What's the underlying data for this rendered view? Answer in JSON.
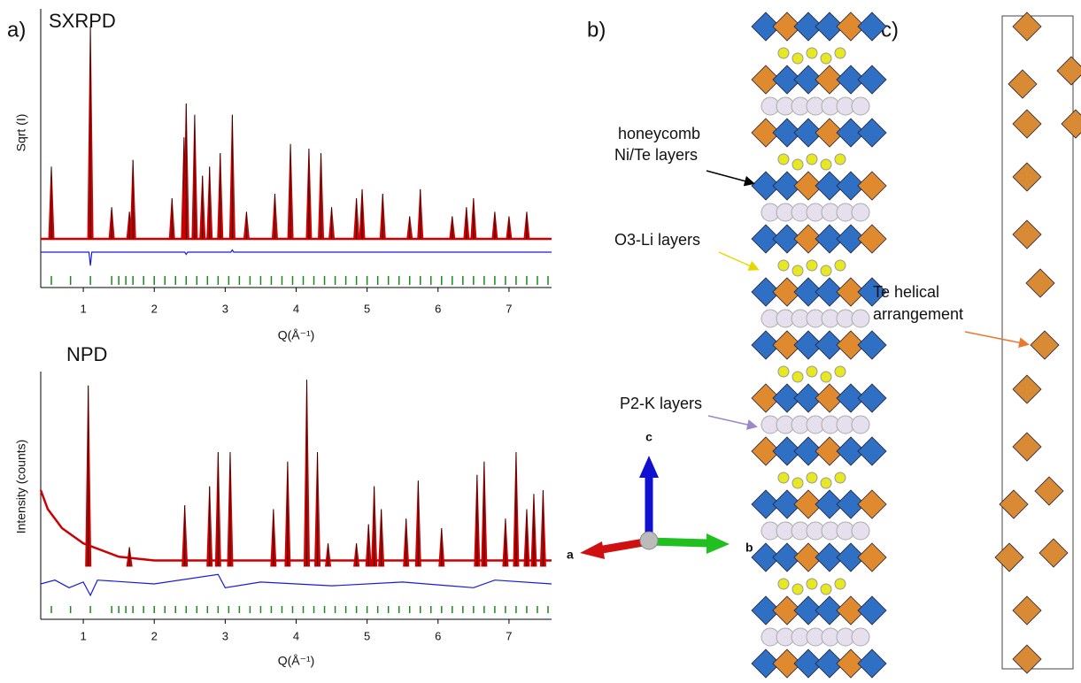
{
  "panel_labels": [
    "a)",
    "b)",
    "c)"
  ],
  "chart_data": [
    {
      "type": "line",
      "title": "SXRPD",
      "y_label": "Sqrt (I)",
      "x_label": "Q(Å⁻¹)",
      "xlim": [
        0.4,
        7.6
      ],
      "xticks": [
        1,
        2,
        3,
        4,
        5,
        6,
        7
      ],
      "ylim": [
        0,
        100
      ],
      "peaks": {
        "x": [
          0.55,
          1.1,
          1.4,
          1.65,
          1.7,
          2.25,
          2.42,
          2.45,
          2.57,
          2.68,
          2.78,
          2.93,
          3.1,
          3.3,
          3.7,
          3.92,
          4.18,
          4.35,
          4.5,
          4.85,
          4.93,
          5.22,
          5.6,
          5.75,
          6.2,
          6.4,
          6.5,
          6.8,
          7.0,
          7.25
        ],
        "values": [
          32,
          94,
          14,
          12,
          35,
          18,
          45,
          60,
          55,
          28,
          32,
          38,
          55,
          12,
          20,
          42,
          40,
          38,
          14,
          18,
          22,
          20,
          10,
          22,
          10,
          14,
          18,
          12,
          10,
          12
        ],
        "color": "#cc0000"
      },
      "difference": {
        "x": [
          0.4,
          1.08,
          1.1,
          1.12,
          2.43,
          2.45,
          2.47,
          3.08,
          3.1,
          3.12,
          7.6
        ],
        "values": [
          0,
          0,
          -6,
          0,
          0,
          -1,
          0,
          0,
          1,
          0,
          0
        ],
        "color": "#1a1adb"
      },
      "reflections": {
        "x": [
          0.55,
          0.82,
          1.1,
          1.4,
          1.5,
          1.6,
          1.7,
          1.85,
          2.0,
          2.15,
          2.3,
          2.45,
          2.6,
          2.75,
          2.9,
          3.05,
          3.2,
          3.35,
          3.5,
          3.65,
          3.8,
          3.95,
          4.1,
          4.25,
          4.4,
          4.55,
          4.7,
          4.85,
          5.0,
          5.15,
          5.3,
          5.45,
          5.6,
          5.75,
          5.9,
          6.05,
          6.2,
          6.35,
          6.5,
          6.65,
          6.8,
          6.95,
          7.1,
          7.25,
          7.4,
          7.55
        ],
        "color": "#1a8a1a"
      }
    },
    {
      "type": "line",
      "title": "NPD",
      "y_label": "Intensity (counts)",
      "x_label": "Q(Å⁻¹)",
      "xlim": [
        0.4,
        7.6
      ],
      "xticks": [
        1,
        2,
        3,
        4,
        5,
        6,
        7
      ],
      "ylim": [
        0,
        100
      ],
      "peaks": {
        "x": [
          1.07,
          1.65,
          2.43,
          2.78,
          2.9,
          3.07,
          3.68,
          3.88,
          4.15,
          4.3,
          4.45,
          4.85,
          5.02,
          5.1,
          5.2,
          5.55,
          5.72,
          6.05,
          6.55,
          6.65,
          6.95,
          7.1,
          7.25,
          7.35,
          7.48
        ],
        "values": [
          95,
          10,
          32,
          42,
          60,
          60,
          30,
          55,
          98,
          60,
          12,
          12,
          22,
          42,
          30,
          25,
          45,
          20,
          48,
          55,
          25,
          60,
          30,
          38,
          40
        ],
        "color": "#cc0000"
      },
      "background": {
        "x": [
          0.4,
          0.5,
          0.7,
          1.0,
          1.5,
          2.0,
          7.6
        ],
        "values": [
          40,
          30,
          20,
          12,
          5,
          3,
          3
        ],
        "color": "#cc0000"
      },
      "difference": {
        "x": [
          0.4,
          0.6,
          0.8,
          1.0,
          1.1,
          1.2,
          2.0,
          2.9,
          3.0,
          3.5,
          4.5,
          5.5,
          6.5,
          6.8,
          7.6
        ],
        "values": [
          0,
          2,
          -2,
          1,
          -6,
          2,
          0,
          5,
          -2,
          1,
          -1,
          1,
          -2,
          2,
          0
        ],
        "color": "#1a1adb"
      },
      "reflections": {
        "x": [
          0.55,
          0.82,
          1.1,
          1.4,
          1.5,
          1.6,
          1.7,
          1.85,
          2.0,
          2.15,
          2.3,
          2.45,
          2.6,
          2.75,
          2.9,
          3.05,
          3.2,
          3.35,
          3.5,
          3.65,
          3.8,
          3.95,
          4.1,
          4.25,
          4.4,
          4.55,
          4.7,
          4.85,
          5.0,
          5.15,
          5.3,
          5.45,
          5.6,
          5.75,
          5.9,
          6.05,
          6.2,
          6.35,
          6.5,
          6.65,
          6.8,
          6.95,
          7.1,
          7.25,
          7.4,
          7.55
        ],
        "color": "#1a8a1a"
      }
    }
  ],
  "structure": {
    "labels": [
      "honeycomb",
      "Ni/Te layers",
      "O3-Li layers",
      "Te helical",
      "arrangement",
      "P2-K layers"
    ],
    "axes": [
      "a",
      "b",
      "c"
    ]
  }
}
